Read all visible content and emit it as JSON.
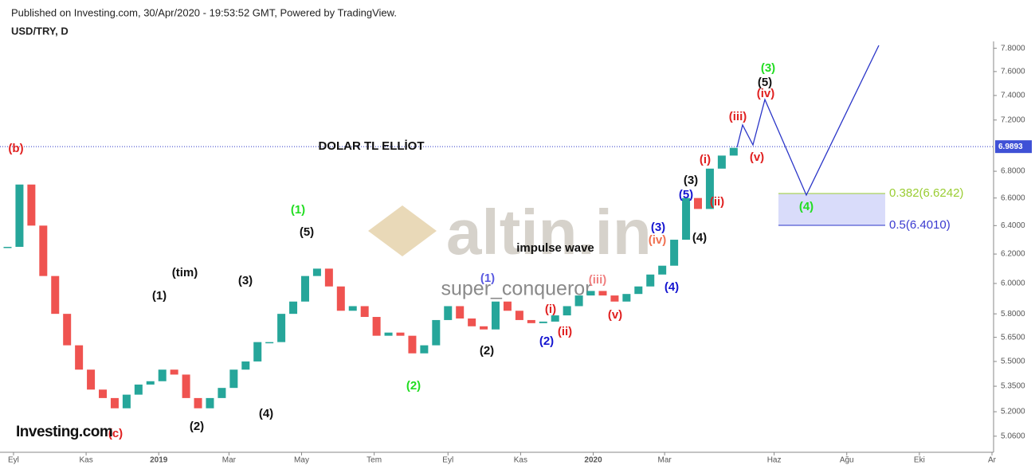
{
  "header": {
    "published": "Published on Investing.com, 30/Apr/2020 - 19:53:52 GMT, Powered by TradingView.",
    "symbol": "USD/TRY, D"
  },
  "chart_data": {
    "type": "candlestick",
    "log_scale": true,
    "x": [
      -5,
      5,
      15,
      25,
      35,
      45,
      55,
      65,
      75,
      85,
      95,
      105,
      115,
      125,
      135,
      145,
      155,
      165,
      175,
      185,
      195,
      205,
      215,
      225,
      235,
      245,
      255,
      265,
      275,
      285,
      295,
      305,
      315,
      325,
      335,
      345,
      355,
      365,
      375,
      385,
      395,
      405,
      415,
      425,
      435,
      445,
      455,
      465,
      475,
      485,
      495,
      505,
      515,
      525,
      535,
      545,
      555,
      565,
      575,
      585,
      595,
      605
    ],
    "close": [
      6.25,
      6.7,
      6.4,
      6.05,
      5.8,
      5.6,
      5.45,
      5.33,
      5.28,
      5.22,
      5.3,
      5.36,
      5.38,
      5.45,
      5.42,
      5.28,
      5.22,
      5.28,
      5.34,
      5.45,
      5.5,
      5.62,
      5.62,
      5.8,
      5.88,
      6.05,
      6.1,
      5.98,
      5.82,
      5.85,
      5.78,
      5.66,
      5.68,
      5.66,
      5.55,
      5.6,
      5.76,
      5.85,
      5.77,
      5.72,
      5.7,
      5.88,
      5.82,
      5.76,
      5.74,
      5.75,
      5.79,
      5.85,
      5.92,
      5.95,
      5.92,
      5.88,
      5.93,
      5.98,
      6.06,
      6.12,
      6.3,
      6.6,
      6.52,
      6.82,
      6.92,
      6.98
    ],
    "up_color": "#26a69a",
    "down_color": "#ef5350",
    "xlim": [
      -6,
      822
    ],
    "xticks": [
      {
        "value": 0,
        "label": "Eyl"
      },
      {
        "value": 61,
        "label": "Kas"
      },
      {
        "value": 122,
        "label": "2019"
      },
      {
        "value": 181,
        "label": "Mar"
      },
      {
        "value": 242,
        "label": "May"
      },
      {
        "value": 303,
        "label": "Tem"
      },
      {
        "value": 365,
        "label": "Eyl"
      },
      {
        "value": 426,
        "label": "Kas"
      },
      {
        "value": 487,
        "label": "2020"
      },
      {
        "value": 547,
        "label": "Mar"
      },
      {
        "value": 639,
        "label": "Haz"
      },
      {
        "value": 700,
        "label": "Ağu"
      },
      {
        "value": 761,
        "label": "Eki"
      },
      {
        "value": 822,
        "label": "Ar"
      }
    ],
    "ylim": [
      4.97,
      7.86
    ],
    "yticks": [
      {
        "value": 5.06,
        "label": "5.0600"
      },
      {
        "value": 5.2,
        "label": "5.2000"
      },
      {
        "value": 5.35,
        "label": "5.3500"
      },
      {
        "value": 5.5,
        "label": "5.5000"
      },
      {
        "value": 5.65,
        "label": "5.6500"
      },
      {
        "value": 5.8,
        "label": "5.8000"
      },
      {
        "value": 6.0,
        "label": "6.0000"
      },
      {
        "value": 6.2,
        "label": "6.2000"
      },
      {
        "value": 6.4,
        "label": "6.4000"
      },
      {
        "value": 6.6,
        "label": "6.6000"
      },
      {
        "value": 6.8,
        "label": "6.8000"
      },
      {
        "value": 7.2,
        "label": "7.2000"
      },
      {
        "value": 7.4,
        "label": "7.4000"
      },
      {
        "value": 7.6,
        "label": "7.6000"
      },
      {
        "value": 7.8,
        "label": "7.8000"
      }
    ],
    "last_price": 6.9893,
    "annotations": [
      "DOLAR TL ELLİOT",
      "(b)",
      "(c)",
      "(1)",
      "(tim)",
      "(2)",
      "(3)",
      "(4)",
      "(1)",
      "(5)",
      "(2)",
      "impulse wave",
      "(1)",
      "(2)",
      "(i)",
      "(ii)",
      "(2)",
      "(iii)",
      "(iv)",
      "(v)",
      "(3)",
      "(4)",
      "(5)",
      "(3)",
      "(4)",
      "(i)",
      "(ii)",
      "(iii)",
      "(iv)",
      "(v)",
      "(5)",
      "(3)",
      "(4)",
      "0.382(6.6242)",
      "0.5(6.4010)",
      "super_conqueror",
      "altin.in",
      "Investing.com"
    ]
  }
}
